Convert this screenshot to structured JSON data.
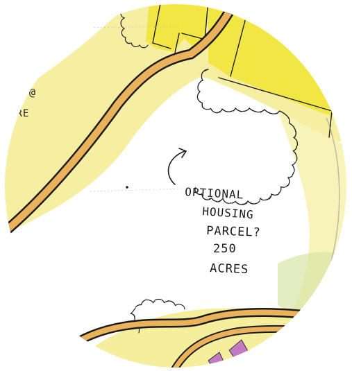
{
  "map": {
    "annotation_lines": [
      "OPTIONAL",
      "HOUSING",
      "PARCEL?",
      "250",
      "ACRES"
    ],
    "edge_label_fragments": [
      "o @",
      "ORE"
    ],
    "colors": {
      "paper": "#ffffff",
      "land_yellow": "#f4ec92",
      "land_pale": "#f7f3b6",
      "parcel_yellow": "#f2e43a",
      "road_orange": "#e9b25b",
      "road_outline": "#1a1a1a",
      "ink": "#1a1a1a",
      "green_tint": "#d9e4a8",
      "purple_patch": "#c27ac2"
    }
  }
}
